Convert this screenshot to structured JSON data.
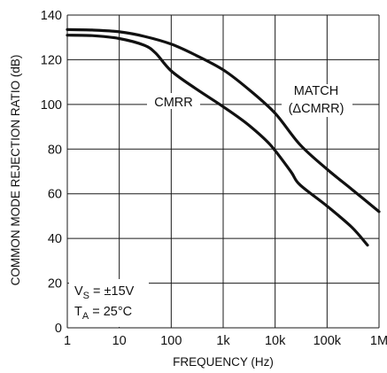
{
  "chart_data": {
    "type": "line",
    "xlabel": "FREQUENCY (Hz)",
    "ylabel": "COMMON MODE REJECTION RATIO (dB)",
    "x_scale": "log",
    "xlim": [
      1,
      1000000
    ],
    "ylim": [
      0,
      140
    ],
    "grid": true,
    "x_ticks": [
      1,
      10,
      100,
      1000,
      10000,
      100000,
      1000000
    ],
    "x_tick_labels": [
      "1",
      "10",
      "100",
      "1k",
      "10k",
      "100k",
      "1M"
    ],
    "y_ticks": [
      0,
      20,
      40,
      60,
      80,
      100,
      120,
      140
    ],
    "y_tick_labels": [
      "0",
      "20",
      "40",
      "60",
      "80",
      "100",
      "120",
      "140"
    ],
    "series": [
      {
        "name": "MATCH",
        "name_line2": "(ΔCMRR)",
        "x": [
          1,
          3,
          10,
          30,
          100,
          300,
          1000,
          3000,
          10000,
          30000,
          100000,
          300000,
          1000000
        ],
        "y": [
          133.5,
          133.3,
          132.5,
          130.5,
          127,
          122,
          115.5,
          107,
          96,
          82,
          71,
          62,
          52
        ]
      },
      {
        "name": "CMRR",
        "x": [
          1,
          3,
          10,
          30,
          50,
          100,
          300,
          1000,
          3000,
          8000,
          20000,
          30000,
          100000,
          300000,
          600000
        ],
        "y": [
          131,
          130.8,
          129.5,
          126.5,
          123,
          115,
          107,
          99,
          91,
          82,
          70,
          64,
          54.5,
          45,
          37
        ]
      }
    ],
    "annotations": {
      "vs_label": "V",
      "vs_sub": "S",
      "vs_value": " = ±15V",
      "ta_label": "T",
      "ta_sub": "A",
      "ta_value": " = 25°C"
    }
  }
}
